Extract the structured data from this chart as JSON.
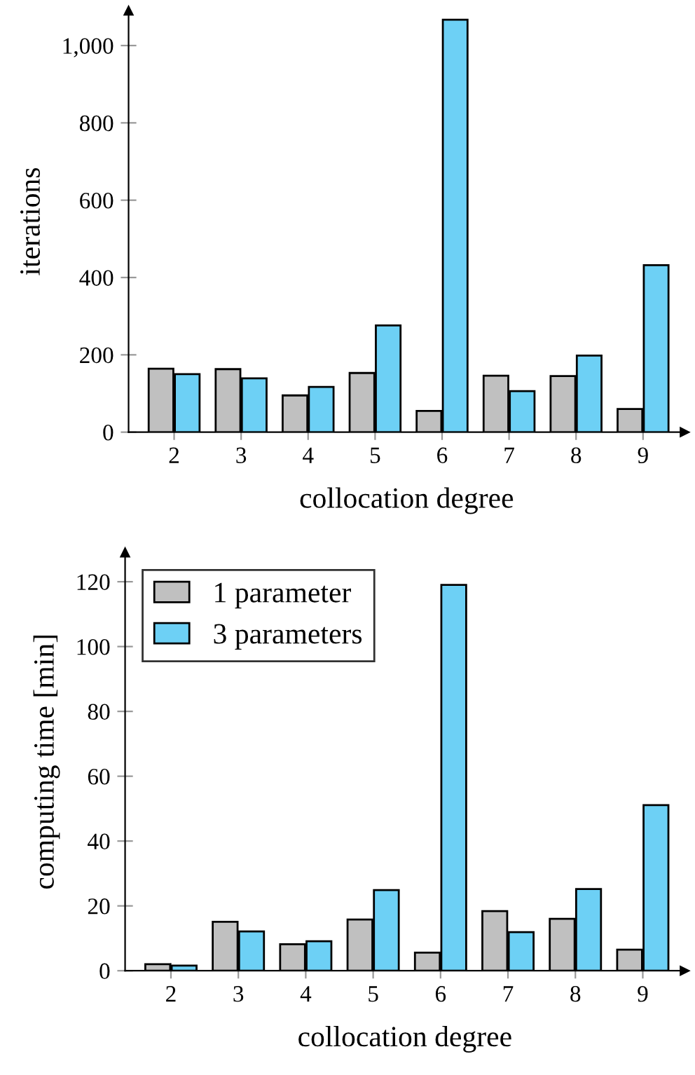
{
  "chart_data": [
    {
      "type": "bar",
      "xlabel": "collocation degree",
      "ylabel": "iterations",
      "categories": [
        "2",
        "3",
        "4",
        "5",
        "6",
        "7",
        "8",
        "9"
      ],
      "series": [
        {
          "color": "#c0c0c0",
          "values": [
            164,
            163,
            95,
            153,
            55,
            146,
            145,
            60
          ]
        },
        {
          "color": "#6dd0f5",
          "values": [
            150,
            139,
            117,
            276,
            1067,
            106,
            198,
            432
          ]
        }
      ],
      "ylim": [
        0,
        1090
      ],
      "yticks": [
        0,
        200,
        400,
        600,
        800,
        {
          "value": 1000,
          "label": "1,000"
        }
      ],
      "grid": false,
      "legend": false
    },
    {
      "type": "bar",
      "xlabel": "collocation degree",
      "ylabel": "computing time [min]",
      "categories": [
        "2",
        "3",
        "4",
        "5",
        "6",
        "7",
        "8",
        "9"
      ],
      "series": [
        {
          "name": "1 parameter",
          "color": "#c0c0c0",
          "values": [
            2.0,
            15.1,
            8.2,
            15.8,
            5.6,
            18.4,
            16.0,
            6.5
          ]
        },
        {
          "name": "3 parameters",
          "color": "#6dd0f5",
          "values": [
            1.6,
            12.1,
            9.1,
            24.9,
            119,
            11.9,
            25.2,
            51.1
          ]
        }
      ],
      "ylim": [
        0,
        129
      ],
      "yticks": [
        0,
        20,
        40,
        60,
        80,
        100,
        120
      ],
      "grid": false,
      "legend": "top left"
    }
  ]
}
